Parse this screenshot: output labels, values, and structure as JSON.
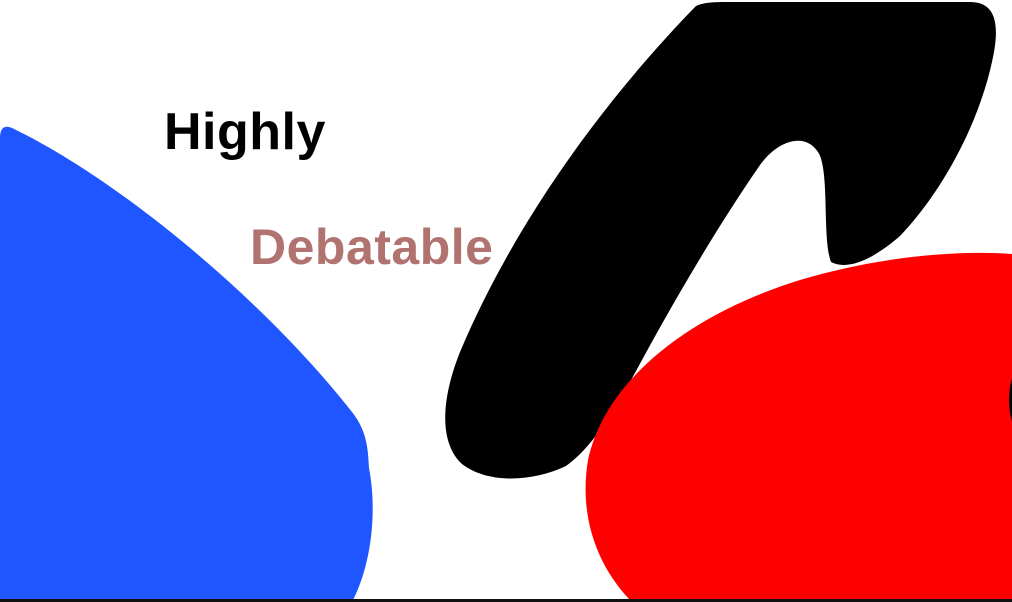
{
  "words": {
    "first": "Highly",
    "second": "Debatable"
  },
  "colors": {
    "background": "#ffffff",
    "blue_shape": "#1f56ff",
    "black_shape": "#000000",
    "red_shape": "#ff0000",
    "first_word": "#000000",
    "second_word": "#b07370"
  }
}
